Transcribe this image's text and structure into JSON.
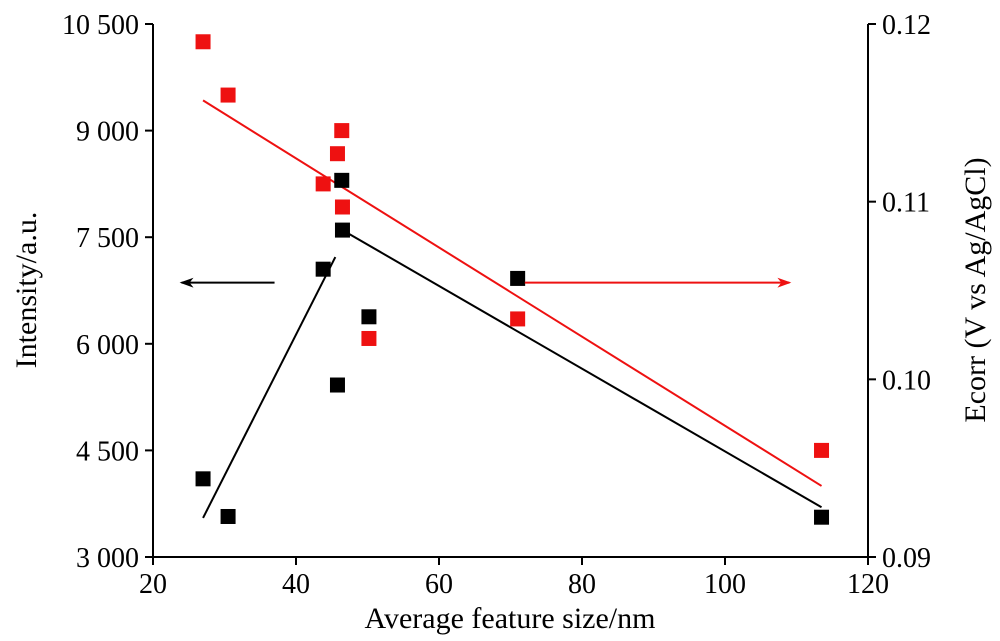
{
  "chart_data": {
    "type": "scatter",
    "title": "",
    "xlabel": "Average feature size/nm",
    "ylabel_left": "Intensity/a.u.",
    "ylabel_right": "Ecorr (V vs Ag/AgCl)",
    "xlim": [
      20,
      120
    ],
    "ylim_left": [
      3000,
      10500
    ],
    "ylim_right": [
      0.09,
      0.12
    ],
    "x_ticks": [
      "20",
      "40",
      "60",
      "80",
      "100",
      "120"
    ],
    "y_left_ticks": [
      "3 000",
      "4 500",
      "6 000",
      "7 500",
      "9 000",
      "10 500"
    ],
    "y_right_ticks": [
      "0.09",
      "0.10",
      "0.11",
      "0.12"
    ],
    "x_tick_values": [
      20,
      40,
      60,
      80,
      100,
      120
    ],
    "y_left_tick_values": [
      3000,
      4500,
      6000,
      7500,
      9000,
      10500
    ],
    "y_right_tick_values": [
      0.09,
      0.1,
      0.11,
      0.12
    ],
    "grid": false,
    "series": [
      {
        "axis": "left",
        "color": "#000000",
        "points": [
          {
            "x": 27.0,
            "y": 4100
          },
          {
            "x": 30.5,
            "y": 3570
          },
          {
            "x": 43.8,
            "y": 7050
          },
          {
            "x": 45.8,
            "y": 5420
          },
          {
            "x": 46.4,
            "y": 8300
          },
          {
            "x": 46.5,
            "y": 7600
          },
          {
            "x": 50.2,
            "y": 6380
          },
          {
            "x": 71.0,
            "y": 6920
          },
          {
            "x": 113.5,
            "y": 3560
          }
        ],
        "fit_lines": [
          {
            "x1": 27.0,
            "y1": 3550,
            "x2": 45.5,
            "y2": 7220
          },
          {
            "x1": 46.5,
            "y1": 7600,
            "x2": 113.5,
            "y2": 3700
          }
        ]
      },
      {
        "axis": "right",
        "color": "#ee1111",
        "points": [
          {
            "x": 27.0,
            "y": 0.119
          },
          {
            "x": 30.5,
            "y": 0.116
          },
          {
            "x": 43.8,
            "y": 0.111
          },
          {
            "x": 45.8,
            "y": 0.1127
          },
          {
            "x": 46.4,
            "y": 0.114
          },
          {
            "x": 46.5,
            "y": 0.1097
          },
          {
            "x": 50.2,
            "y": 0.1023
          },
          {
            "x": 71.0,
            "y": 0.1034
          },
          {
            "x": 113.5,
            "y": 0.096
          }
        ],
        "fit_lines": [
          {
            "x1": 27.0,
            "y1": 0.1157,
            "x2": 113.5,
            "y2": 0.094
          }
        ]
      }
    ],
    "annotations": [
      {
        "type": "arrow",
        "color": "#000000",
        "axis": "left",
        "from": {
          "x": 37.0,
          "y": 6860
        },
        "to": {
          "x": 24.0,
          "y": 6860
        }
      },
      {
        "type": "arrow",
        "color": "#ee1111",
        "axis": "left",
        "from": {
          "x": 72.0,
          "y": 6860
        },
        "to": {
          "x": 109.0,
          "y": 6860
        }
      }
    ]
  }
}
